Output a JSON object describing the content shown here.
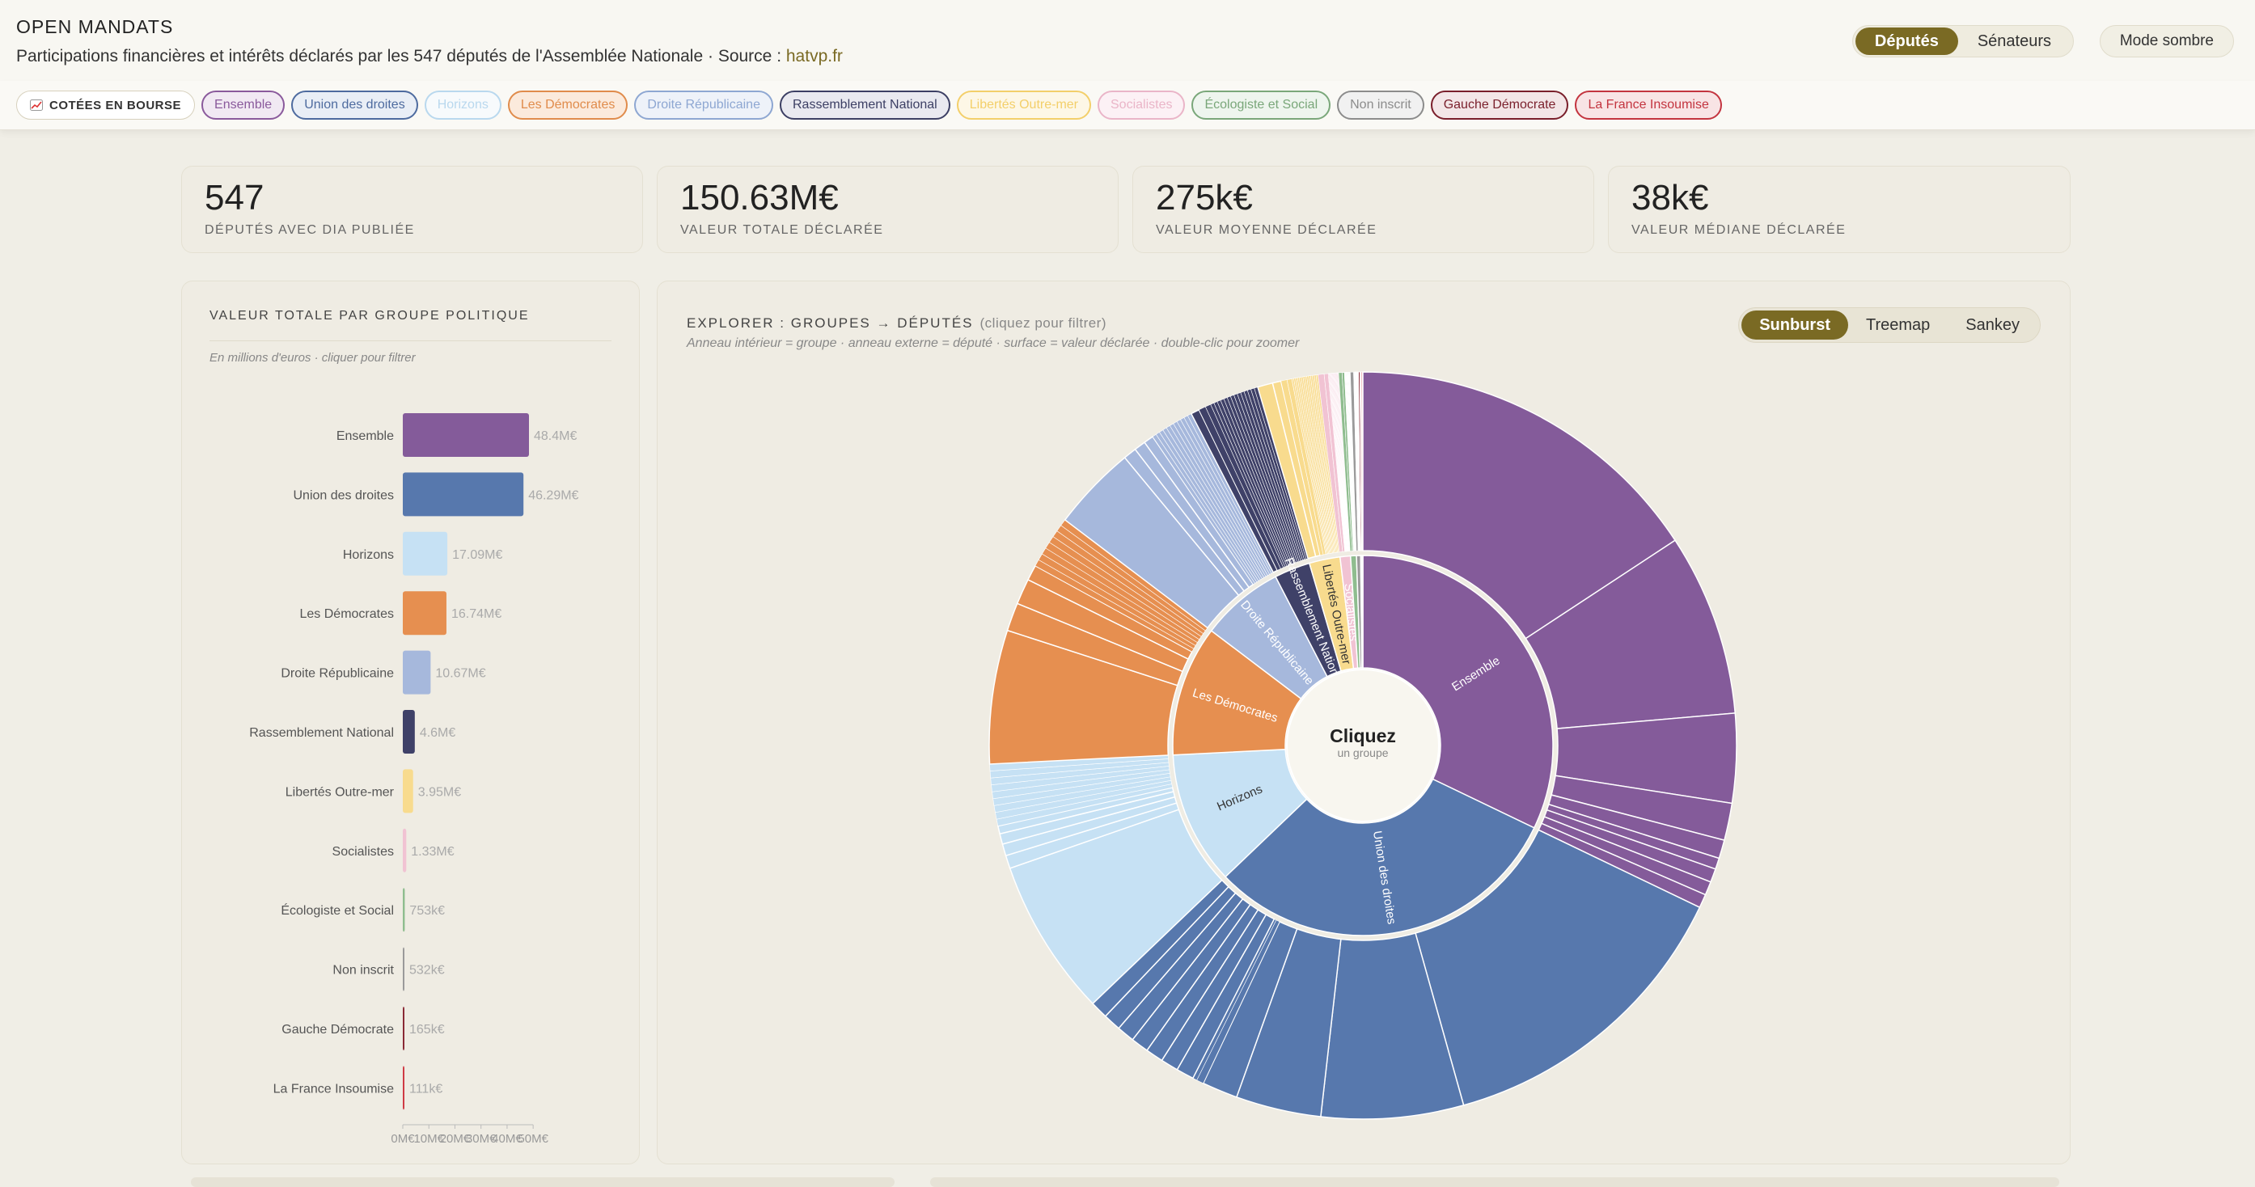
{
  "header": {
    "title": "OPEN MANDATS",
    "subtitle": "Participations financières et intérêts déclarés par les 547 députés de l'Assemblée Nationale · Source : ",
    "source_link": "hatvp.fr",
    "chamber_toggle": [
      {
        "label": "Députés",
        "active": true
      },
      {
        "label": "Sénateurs",
        "active": false
      }
    ],
    "dark_mode_label": "Mode sombre"
  },
  "filters": {
    "listed_label": "COTÉES EN BOURSE",
    "listed_icon": "chart-up-icon",
    "chips": [
      {
        "label": "Ensemble",
        "color": "#8a5a9c",
        "bg": "#f1e9f3"
      },
      {
        "label": "Union des droites",
        "color": "#4e6b9f",
        "bg": "#e9eef6"
      },
      {
        "label": "Horizons",
        "color": "#b9d8ee",
        "bg": "#f7fafc"
      },
      {
        "label": "Les Démocrates",
        "color": "#e08c4c",
        "bg": "#fbeadc"
      },
      {
        "label": "Droite Républicaine",
        "color": "#8ea7d2",
        "bg": "#eef2f9"
      },
      {
        "label": "Rassemblement National",
        "color": "#3c3f64",
        "bg": "#e9e9f0"
      },
      {
        "label": "Libertés Outre-mer",
        "color": "#f3cf6a",
        "bg": "#fdf7e6"
      },
      {
        "label": "Socialistes",
        "color": "#eab5c8",
        "bg": "#fcf1f5"
      },
      {
        "label": "Écologiste et Social",
        "color": "#7aa77a",
        "bg": "#eef5ee"
      },
      {
        "label": "Non inscrit",
        "color": "#8c8c8c",
        "bg": "#f1f1f1"
      },
      {
        "label": "Gauche Démocrate",
        "color": "#7a1f2b",
        "bg": "#f3e6e7"
      },
      {
        "label": "La France Insoumise",
        "color": "#c3343f",
        "bg": "#f8e4e5"
      }
    ]
  },
  "kpis": [
    {
      "value": "547",
      "label": "DÉPUTÉS AVEC DIA PUBLIÉE"
    },
    {
      "value": "150.63M€",
      "label": "VALEUR TOTALE DÉCLARÉE"
    },
    {
      "value": "275k€",
      "label": "VALEUR MOYENNE DÉCLARÉE"
    },
    {
      "value": "38k€",
      "label": "VALEUR MÉDIANE DÉCLARÉE"
    }
  ],
  "bar_panel": {
    "title": "VALEUR TOTALE PAR GROUPE POLITIQUE",
    "note": "En millions d'euros · cliquer pour filtrer"
  },
  "explorer": {
    "title": "EXPLORER : GROUPES → DÉPUTÉS",
    "hint": "(cliquez pour filtrer)",
    "note": "Anneau intérieur = groupe · anneau externe = député · surface = valeur déclarée · double-clic pour zoomer",
    "views": [
      {
        "label": "Sunburst",
        "active": true
      },
      {
        "label": "Treemap",
        "active": false
      },
      {
        "label": "Sankey",
        "active": false
      }
    ],
    "center_title": "Cliquez",
    "center_sub": "un groupe"
  },
  "chart_data": {
    "type": "bar",
    "orientation": "horizontal",
    "categories": [
      "Ensemble",
      "Union des droites",
      "Horizons",
      "Les Démocrates",
      "Droite Républicaine",
      "Rassemblement National",
      "Libertés Outre-mer",
      "Socialistes",
      "Écologiste et Social",
      "Non inscrit",
      "Gauche Démocrate",
      "La France Insoumise"
    ],
    "values": [
      48.4,
      46.29,
      17.09,
      16.74,
      10.67,
      4.6,
      3.95,
      1.33,
      0.753,
      0.532,
      0.165,
      0.111
    ],
    "value_labels": [
      "48.4M€",
      "46.29M€",
      "17.09M€",
      "16.74M€",
      "10.67M€",
      "4.6M€",
      "3.95M€",
      "1.33M€",
      "753k€",
      "532k€",
      "165k€",
      "111k€"
    ],
    "colors": [
      "#845b9a",
      "#5778ad",
      "#c6e1f4",
      "#e68f50",
      "#a6b8dc",
      "#3f4168",
      "#f8db8e",
      "#f1c3d3",
      "#8fbd8f",
      "#9a9a9a",
      "#8a2a36",
      "#cf3b45"
    ],
    "xticks": [
      "0M€",
      "10M€",
      "20M€",
      "30M€",
      "40M€",
      "50M€"
    ],
    "xlim": [
      0,
      50
    ],
    "ylabel": "",
    "xlabel": ""
  }
}
